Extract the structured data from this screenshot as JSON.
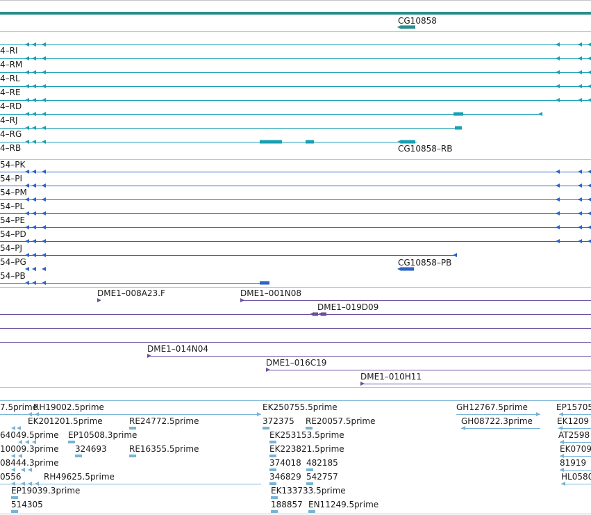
{
  "colors": {
    "gene": "#2a8d8d",
    "transcript": "#18a0b4",
    "protein": "#2e63c6",
    "clone": "#6b4f9e",
    "est": "#78b3d6",
    "divider": "#c4c4c4"
  },
  "gene": {
    "label": "CG10858"
  },
  "transcripts": [
    {
      "label": "4–RI"
    },
    {
      "label": "4–RM"
    },
    {
      "label": "4–RL"
    },
    {
      "label": "4–RE"
    },
    {
      "label": "4–RD"
    },
    {
      "label": "4–RJ"
    },
    {
      "label": "4–RG"
    },
    {
      "label": "4–RB"
    }
  ],
  "transcript_extra_label": "CG10858–RB",
  "proteins": [
    {
      "label": "54–PK"
    },
    {
      "label": "54–PI"
    },
    {
      "label": "54–PM"
    },
    {
      "label": "54–PL"
    },
    {
      "label": "54–PE"
    },
    {
      "label": "54–PD"
    },
    {
      "label": "54–PJ"
    },
    {
      "label": "54–PG"
    },
    {
      "label": "54–PB"
    }
  ],
  "protein_extra_label": "CG10858–PB",
  "clones": [
    "DME1–008A23.F",
    "DME1–001N08",
    "DME1–019D09",
    "DME1–014N04",
    "DME1–016C19",
    "DME1–010H11"
  ],
  "ests": [
    "7.5prime",
    "RH19002.5prime",
    "EK250755.5prime",
    "GH12767.5prime",
    "EP15705",
    "EK201201.5prime",
    "RE24772.5prime",
    "372375",
    "RE20057.5prime",
    "GH08722.3prime",
    "EK1209",
    "64049.5prime",
    "EP10508.3prime",
    "EK253153.5prime",
    "AT2598",
    "10009.3prime",
    "324693",
    "RE16355.5prime",
    "EK223821.5prime",
    "EK0709",
    "08444.3prime",
    "374018",
    "482185",
    "81919",
    "0556",
    "RH49625.5prime",
    "346829",
    "542757",
    "HL0580",
    "EP19039.3prime",
    "EK133733.5prime",
    "514305",
    "188857",
    "EN11249.5prime"
  ]
}
